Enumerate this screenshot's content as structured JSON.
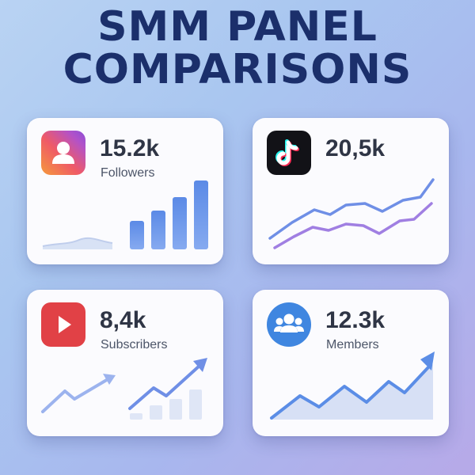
{
  "title": {
    "line1": "SMM PANEL",
    "line2": "COMPARISONS"
  },
  "cards": [
    {
      "platform_icon": "instagram-person-icon",
      "value": "15.2k",
      "label": "Followers",
      "chart": "bar-chart-rising-with-flat-area"
    },
    {
      "platform_icon": "tiktok-icon",
      "value": "20,5k",
      "label": "",
      "chart": "two-line-trend"
    },
    {
      "platform_icon": "youtube-play-icon",
      "value": "8,4k",
      "label": "Subscribers",
      "chart": "arrow-trend-with-bars"
    },
    {
      "platform_icon": "group-people-icon",
      "value": "12.3k",
      "label": "Members",
      "chart": "area-trend-arrow"
    }
  ],
  "colors": {
    "title": "#1b2f6b",
    "accent_blue": "#5b8de6",
    "line_purple": "#9b7fe0",
    "youtube_red": "#e14146",
    "tiktok_black": "#121217",
    "group_blue": "#3f86e0"
  }
}
